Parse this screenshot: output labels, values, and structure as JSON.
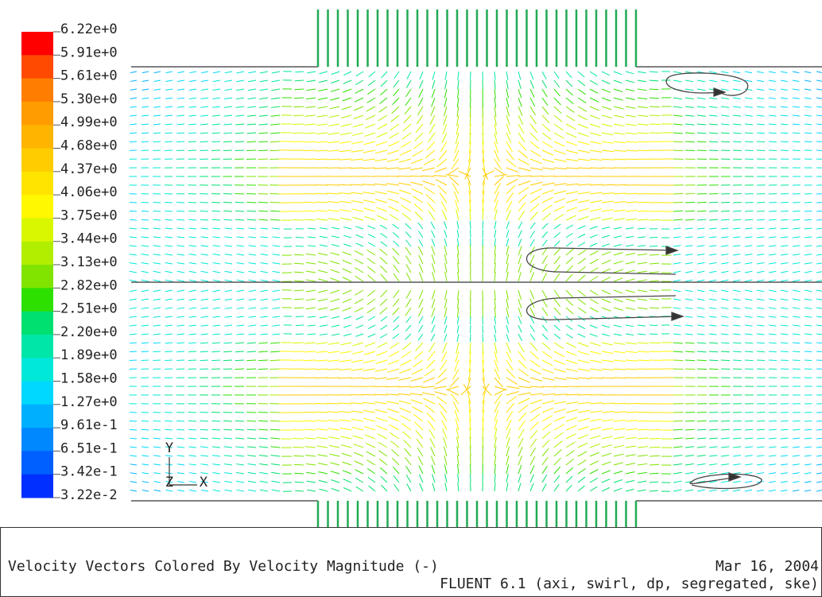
{
  "legend": {
    "labels": [
      "6.22e+0",
      "5.91e+0",
      "5.61e+0",
      "5.30e+0",
      "4.99e+0",
      "4.68e+0",
      "4.37e+0",
      "4.06e+0",
      "3.75e+0",
      "3.44e+0",
      "3.13e+0",
      "2.82e+0",
      "2.51e+0",
      "2.20e+0",
      "1.89e+0",
      "1.58e+0",
      "1.27e+0",
      "9.61e-1",
      "6.51e-1",
      "3.42e-1",
      "3.22e-2"
    ],
    "colors": [
      "#ff0000",
      "#ff4a00",
      "#ff7d00",
      "#ff9d00",
      "#ffb400",
      "#ffcc00",
      "#ffe400",
      "#fff800",
      "#d9f700",
      "#b2ee00",
      "#80e400",
      "#2ee000",
      "#00e070",
      "#00e6a8",
      "#00e8d8",
      "#00d8ff",
      "#00b0ff",
      "#0088ff",
      "#0060ff",
      "#0030ff"
    ]
  },
  "axes": {
    "y": "Y",
    "z": "Z",
    "x": "X"
  },
  "footer": {
    "title": "Velocity Vectors Colored By Velocity Magnitude (-)",
    "date": "Mar 16, 2004",
    "solver": "FLUENT 6.1 (axi, swirl, dp, segregated, ske)"
  }
}
